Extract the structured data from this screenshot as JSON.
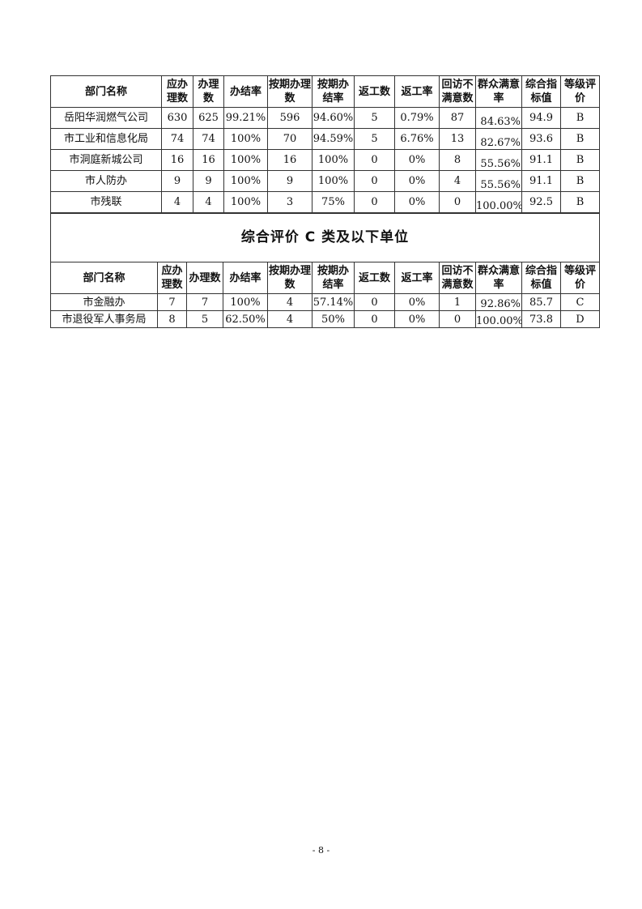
{
  "table1": {
    "headers": [
      "部门名称",
      "应办理数",
      "办理数",
      "办结率",
      "按期办理数",
      "按期办结率",
      "返工数",
      "返工率",
      "回访不满意数",
      "群众满意率",
      "综合指标值",
      "等级评价"
    ],
    "rows": [
      [
        "岳阳华润燃气公司",
        "630",
        "625",
        "99.21%",
        "596",
        "94.60%",
        "5",
        "0.79%",
        "87",
        "84.63%",
        "94.9",
        "B"
      ],
      [
        "市工业和信息化局",
        "74",
        "74",
        "100%",
        "70",
        "94.59%",
        "5",
        "6.76%",
        "13",
        "82.67%",
        "93.6",
        "B"
      ],
      [
        "市洞庭新城公司",
        "16",
        "16",
        "100%",
        "16",
        "100%",
        "0",
        "0%",
        "8",
        "55.56%",
        "91.1",
        "B"
      ],
      [
        "市人防办",
        "9",
        "9",
        "100%",
        "9",
        "100%",
        "0",
        "0%",
        "4",
        "55.56%",
        "91.1",
        "B"
      ],
      [
        "市残联",
        "4",
        "4",
        "100%",
        "3",
        "75%",
        "0",
        "0%",
        "0",
        "100.00%",
        "92.5",
        "B"
      ]
    ]
  },
  "section_title": "综合评价 C 类及以下单位",
  "table2": {
    "headers": [
      "部门名称",
      "应办理数",
      "办理数",
      "办结率",
      "按期办理数",
      "按期办结率",
      "返工数",
      "返工率",
      "回访不满意数",
      "群众满意率",
      "综合指标值",
      "等级评价"
    ],
    "rows": [
      [
        "市金融办",
        "7",
        "7",
        "100%",
        "4",
        "57.14%",
        "0",
        "0%",
        "1",
        "92.86%",
        "85.7",
        "C"
      ],
      [
        "市退役军人事务局",
        "8",
        "5",
        "62.50%",
        "4",
        "50%",
        "0",
        "0%",
        "0",
        "100.00%",
        "73.8",
        "D"
      ]
    ]
  },
  "page_number": "- 8 -"
}
